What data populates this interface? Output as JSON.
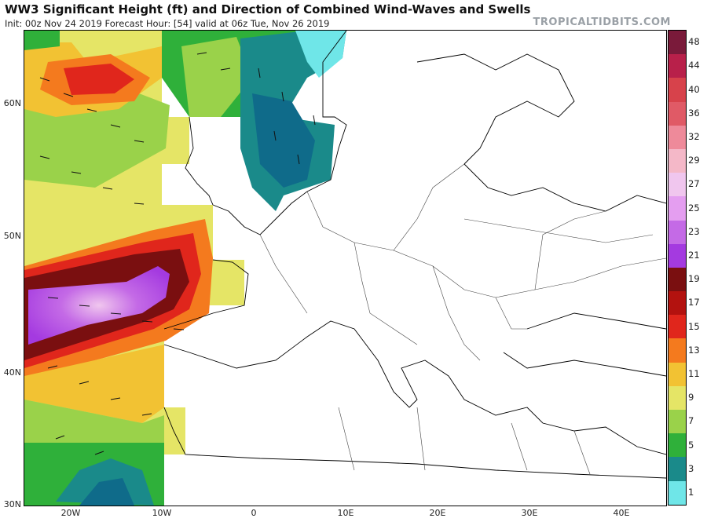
{
  "header": {
    "title": "WW3 Significant Height (ft) and Direction of Combined Wind-Waves and Swells",
    "subtitle": "Init: 00z Nov 24 2019   Forecast Hour: [54]   valid at 06z Tue, Nov 26 2019",
    "brand": "TROPICALTIDBITS.COM"
  },
  "axes": {
    "lat_labels": [
      "60N",
      "50N",
      "40N",
      "30N"
    ],
    "lon_labels": [
      "20W",
      "10W",
      "0",
      "10E",
      "20E",
      "30E",
      "40E"
    ]
  },
  "colorbar": {
    "labels": [
      "48",
      "44",
      "40",
      "36",
      "32",
      "29",
      "27",
      "25",
      "23",
      "21",
      "19",
      "17",
      "15",
      "13",
      "11",
      "9",
      "7",
      "5",
      "3",
      "1"
    ],
    "colors": [
      "#7a1a3a",
      "#b8204a",
      "#d7424b",
      "#e05a66",
      "#ee8a9a",
      "#f4b8c8",
      "#f0c6ee",
      "#e49ef0",
      "#c46ae6",
      "#a43ae0",
      "#7a0f10",
      "#b3120f",
      "#e0261c",
      "#f47a1e",
      "#f2c233",
      "#e5e566",
      "#9ad24a",
      "#2fb03a",
      "#1a8a8a",
      "#6fe6e8"
    ]
  },
  "map": {
    "waves_color_scale": "significant wave height (ft)",
    "colors": {
      "land": "#ffffff",
      "border": "#000000",
      "max_region": "#9b3ee6"
    }
  }
}
